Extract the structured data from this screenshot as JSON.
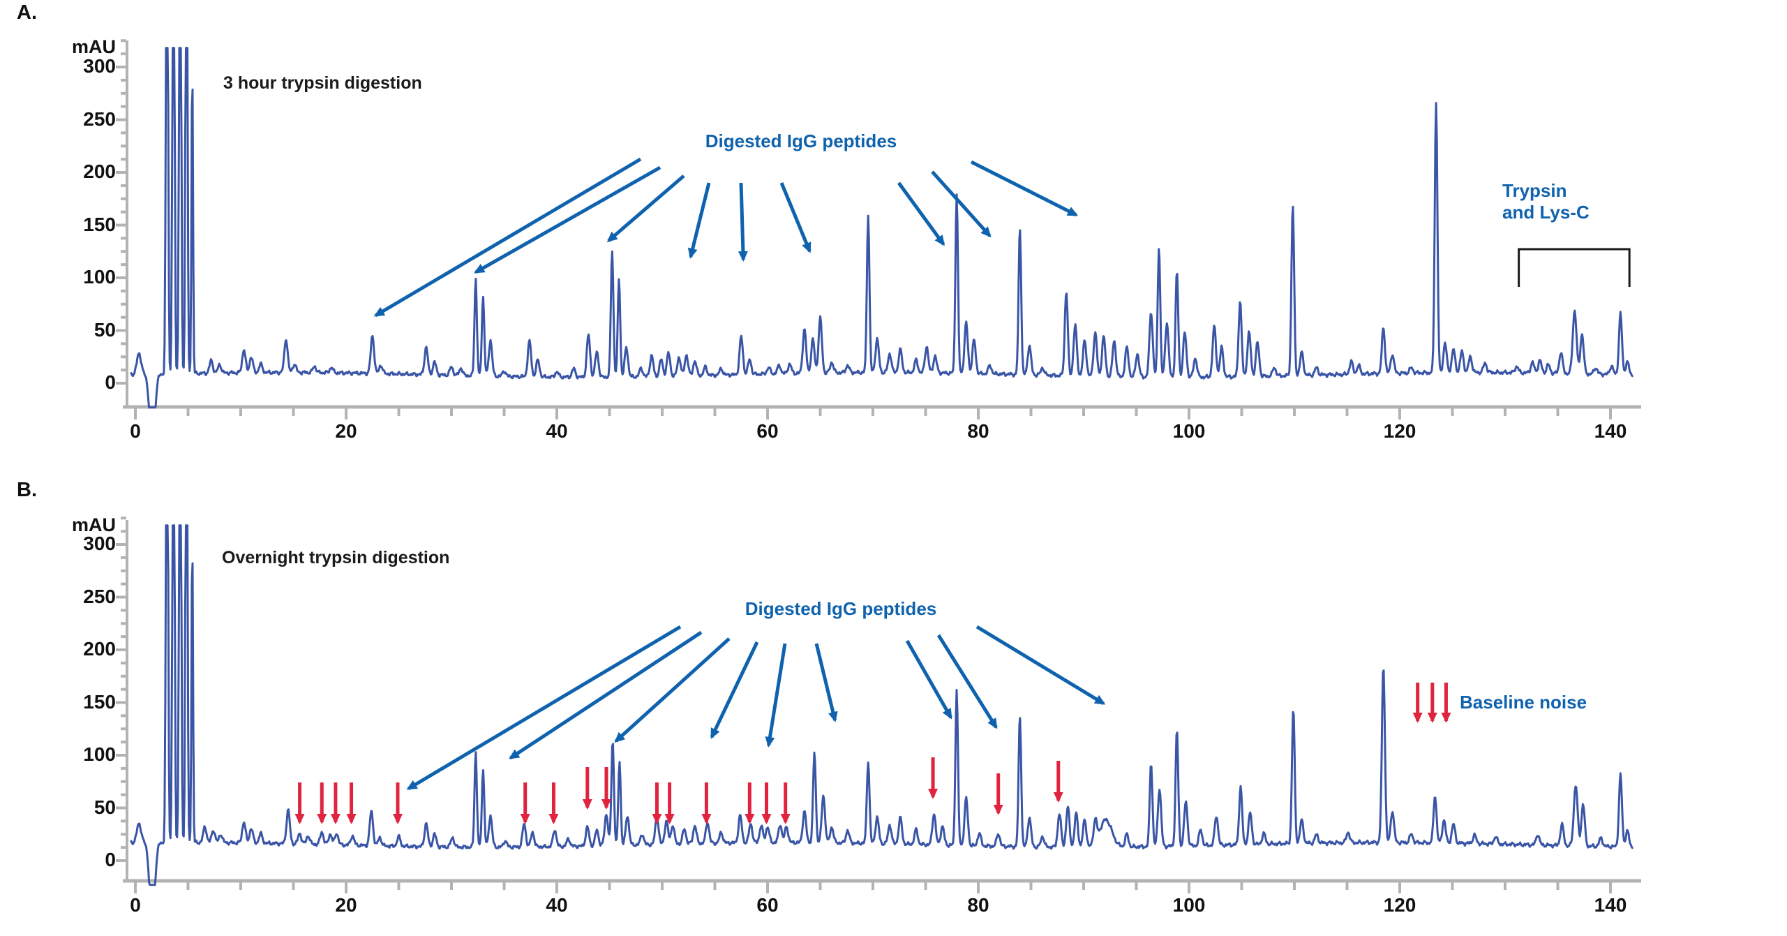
{
  "colors": {
    "trace_blue": "#3A55A6",
    "annotation_blue": "#0F62AE",
    "arrow_red": "#E02440",
    "axis_gray": "#B3B3B3",
    "text_black": "#111111",
    "bracket_black": "#1A1A1A"
  },
  "panels": [
    {
      "letter": "A.",
      "title": "3 hour trypsin digestion",
      "y_axis_unit": "mAU",
      "y_tick_labels": [
        300,
        250,
        200,
        150,
        100,
        50,
        0
      ],
      "x_tick_labels": [
        0,
        20,
        40,
        60,
        80,
        100,
        120,
        140
      ],
      "x_minor_step_min": 5,
      "annotations": {
        "digested_label": "Digested IgG peptides",
        "bracket_label": "Trypsin\nand Lys-C"
      },
      "digested_arrow_tips_min": [
        22.8,
        32.3,
        44.9,
        52.7,
        57.7,
        64.0,
        76.7,
        81.1,
        89.3
      ],
      "bracket_span_min": [
        131.3,
        141.8
      ]
    },
    {
      "letter": "B.",
      "title": "Overnight trypsin digestion",
      "y_axis_unit": "mAU",
      "y_tick_labels": [
        300,
        250,
        200,
        150,
        100,
        50,
        0
      ],
      "x_tick_labels": [
        0,
        20,
        40,
        60,
        80,
        100,
        120,
        140
      ],
      "x_minor_step_min": 5,
      "annotations": {
        "digested_label": "Digested IgG peptides",
        "baseline_label": "Baseline noise"
      },
      "digested_arrow_tips_min": [
        25.9,
        35.6,
        45.6,
        54.7,
        60.1,
        66.4,
        77.4,
        81.7,
        91.9
      ],
      "baseline_noise_arrow_min": [
        15.6,
        17.7,
        19.0,
        20.5,
        24.9,
        37.0,
        39.7,
        42.9,
        44.7,
        49.5,
        50.7,
        54.2,
        58.3,
        59.9,
        61.7,
        75.7,
        81.9,
        87.6
      ],
      "baseline_label_arrow_min": [
        121.7,
        123.1,
        124.4
      ]
    }
  ],
  "chart_data": [
    {
      "type": "line",
      "panel": "A",
      "title": "3 hour trypsin digestion",
      "xlabel": "",
      "ylabel": "mAU",
      "xlim": [
        0,
        142
      ],
      "ylim": [
        -25,
        325
      ],
      "grid": false,
      "baseline_mau": 8,
      "clip_mau": 318,
      "series_name": "UV trace 3 h trypsin digestion",
      "peaks_min_amp_width": [
        [
          0.35,
          20,
          0.3
        ],
        [
          1.6,
          -70,
          0.35
        ],
        [
          3.0,
          600,
          0.13
        ],
        [
          3.62,
          600,
          0.13
        ],
        [
          4.25,
          600,
          0.13
        ],
        [
          4.85,
          600,
          0.12
        ],
        [
          5.4,
          295,
          0.1
        ],
        [
          7.2,
          12
        ],
        [
          8.0,
          8
        ],
        [
          10.3,
          22
        ],
        [
          11.0,
          15
        ],
        [
          11.9,
          8
        ],
        [
          14.3,
          32
        ],
        [
          15.1,
          8
        ],
        [
          17.0,
          6
        ],
        [
          18.6,
          5
        ],
        [
          22.5,
          36
        ],
        [
          23.3,
          8
        ],
        [
          27.6,
          26
        ],
        [
          28.4,
          12
        ],
        [
          30.0,
          8
        ],
        [
          30.9,
          7
        ],
        [
          32.3,
          92,
          0.16
        ],
        [
          33.0,
          76,
          0.16
        ],
        [
          33.7,
          34
        ],
        [
          35.0,
          5
        ],
        [
          37.4,
          34
        ],
        [
          38.2,
          16
        ],
        [
          40.0,
          5
        ],
        [
          41.6,
          8
        ],
        [
          43.0,
          40
        ],
        [
          43.8,
          24
        ],
        [
          45.25,
          120,
          0.17
        ],
        [
          45.9,
          94,
          0.16
        ],
        [
          46.6,
          28
        ],
        [
          48.0,
          8
        ],
        [
          49.0,
          20
        ],
        [
          49.9,
          16
        ],
        [
          50.6,
          22
        ],
        [
          51.6,
          18
        ],
        [
          52.3,
          20
        ],
        [
          53.1,
          14
        ],
        [
          54.1,
          8
        ],
        [
          55.6,
          6
        ],
        [
          57.5,
          36
        ],
        [
          58.3,
          14
        ],
        [
          60.1,
          6
        ],
        [
          61.1,
          8
        ],
        [
          62.1,
          9
        ],
        [
          63.5,
          42
        ],
        [
          64.3,
          32
        ],
        [
          65.0,
          52
        ],
        [
          66.1,
          10
        ],
        [
          67.6,
          7
        ],
        [
          69.55,
          150,
          0.17
        ],
        [
          70.4,
          32
        ],
        [
          71.6,
          18
        ],
        [
          72.6,
          22
        ],
        [
          74.1,
          12
        ],
        [
          75.1,
          25
        ],
        [
          75.9,
          16
        ],
        [
          77.95,
          170,
          0.17
        ],
        [
          78.85,
          48
        ],
        [
          79.6,
          32
        ],
        [
          81.1,
          8
        ],
        [
          83.95,
          140,
          0.17
        ],
        [
          84.85,
          28
        ],
        [
          86.1,
          7
        ],
        [
          88.35,
          80,
          0.2
        ],
        [
          89.2,
          48
        ],
        [
          90.1,
          34
        ],
        [
          91.1,
          42
        ],
        [
          91.9,
          38
        ],
        [
          92.9,
          34
        ],
        [
          94.1,
          28
        ],
        [
          95.1,
          22
        ],
        [
          96.4,
          62
        ],
        [
          97.15,
          124,
          0.17
        ],
        [
          97.9,
          52
        ],
        [
          98.85,
          100,
          0.18
        ],
        [
          99.6,
          42
        ],
        [
          100.6,
          18
        ],
        [
          102.4,
          48
        ],
        [
          103.1,
          28
        ],
        [
          104.85,
          72,
          0.2
        ],
        [
          105.7,
          42
        ],
        [
          106.5,
          32
        ],
        [
          108.1,
          8
        ],
        [
          109.85,
          162,
          0.18
        ],
        [
          110.7,
          22
        ],
        [
          112.1,
          7
        ],
        [
          115.4,
          12
        ],
        [
          116.1,
          8
        ],
        [
          118.45,
          44,
          0.2
        ],
        [
          119.3,
          18
        ],
        [
          121.1,
          5
        ],
        [
          123.45,
          256,
          0.18
        ],
        [
          124.3,
          28
        ],
        [
          125.1,
          22
        ],
        [
          125.9,
          20
        ],
        [
          126.7,
          15
        ],
        [
          128.1,
          9
        ],
        [
          131.1,
          6
        ],
        [
          132.6,
          10
        ],
        [
          133.3,
          12
        ],
        [
          134.1,
          8
        ],
        [
          135.3,
          20
        ],
        [
          136.6,
          60,
          0.25
        ],
        [
          137.3,
          38
        ],
        [
          138.6,
          6
        ],
        [
          140.1,
          8
        ],
        [
          140.95,
          58,
          0.2
        ],
        [
          141.6,
          12
        ]
      ]
    },
    {
      "type": "line",
      "panel": "B",
      "title": "Overnight trypsin digestion",
      "xlabel": "",
      "ylabel": "mAU",
      "xlim": [
        0,
        142
      ],
      "ylim": [
        -25,
        325
      ],
      "grid": false,
      "baseline_mau": 15,
      "clip_mau": 318,
      "series_name": "UV trace overnight trypsin digestion",
      "peaks_min_amp_width": [
        [
          0.35,
          18,
          0.3
        ],
        [
          1.6,
          -75,
          0.35
        ],
        [
          3.0,
          600,
          0.13
        ],
        [
          3.62,
          600,
          0.13
        ],
        [
          4.25,
          600,
          0.13
        ],
        [
          4.85,
          600,
          0.12
        ],
        [
          5.4,
          290,
          0.1
        ],
        [
          6.6,
          15
        ],
        [
          7.4,
          12
        ],
        [
          8.1,
          8
        ],
        [
          10.3,
          20
        ],
        [
          11.0,
          14
        ],
        [
          11.9,
          9
        ],
        [
          14.5,
          32
        ],
        [
          15.6,
          10
        ],
        [
          16.4,
          8
        ],
        [
          17.7,
          12
        ],
        [
          18.5,
          10
        ],
        [
          19.1,
          11
        ],
        [
          20.6,
          9
        ],
        [
          22.4,
          33
        ],
        [
          23.2,
          8
        ],
        [
          25.0,
          9
        ],
        [
          27.6,
          22
        ],
        [
          28.4,
          12
        ],
        [
          30.1,
          9
        ],
        [
          32.3,
          90,
          0.16
        ],
        [
          33.0,
          74,
          0.16
        ],
        [
          33.7,
          30
        ],
        [
          35.1,
          6
        ],
        [
          36.9,
          22
        ],
        [
          37.7,
          14
        ],
        [
          39.8,
          16
        ],
        [
          41.1,
          7
        ],
        [
          42.9,
          18
        ],
        [
          43.8,
          15
        ],
        [
          44.7,
          30
        ],
        [
          45.3,
          100,
          0.17
        ],
        [
          45.95,
          80,
          0.16
        ],
        [
          46.7,
          28
        ],
        [
          48.1,
          10
        ],
        [
          49.5,
          26
        ],
        [
          50.4,
          22
        ],
        [
          51.0,
          18
        ],
        [
          52.1,
          14
        ],
        [
          53.1,
          17
        ],
        [
          54.3,
          20
        ],
        [
          55.6,
          10
        ],
        [
          57.4,
          26
        ],
        [
          58.4,
          18
        ],
        [
          59.4,
          16
        ],
        [
          60.0,
          15
        ],
        [
          61.2,
          17
        ],
        [
          61.8,
          15
        ],
        [
          63.5,
          30
        ],
        [
          64.45,
          85,
          0.18
        ],
        [
          65.3,
          45
        ],
        [
          66.1,
          15
        ],
        [
          67.6,
          12
        ],
        [
          69.55,
          78,
          0.18
        ],
        [
          70.4,
          25
        ],
        [
          71.6,
          18
        ],
        [
          72.6,
          25
        ],
        [
          74.1,
          14
        ],
        [
          75.8,
          30
        ],
        [
          76.6,
          18
        ],
        [
          77.95,
          148,
          0.17
        ],
        [
          78.85,
          45
        ],
        [
          80.1,
          12
        ],
        [
          81.9,
          12
        ],
        [
          83.95,
          125,
          0.17
        ],
        [
          84.85,
          28
        ],
        [
          86.1,
          10
        ],
        [
          87.7,
          32
        ],
        [
          88.5,
          38
        ],
        [
          89.3,
          32
        ],
        [
          90.1,
          26
        ],
        [
          91.1,
          22
        ],
        [
          92.1,
          26,
          0.8
        ],
        [
          94.1,
          12
        ],
        [
          96.4,
          80,
          0.18
        ],
        [
          97.2,
          55
        ],
        [
          98.85,
          110,
          0.18
        ],
        [
          99.7,
          42
        ],
        [
          101.1,
          15
        ],
        [
          102.6,
          28
        ],
        [
          104.9,
          55,
          0.2
        ],
        [
          105.8,
          30
        ],
        [
          107.1,
          10
        ],
        [
          109.9,
          128,
          0.18
        ],
        [
          110.7,
          22
        ],
        [
          112.1,
          8
        ],
        [
          115.1,
          10
        ],
        [
          118.45,
          168,
          0.2
        ],
        [
          119.3,
          30
        ],
        [
          121.1,
          8
        ],
        [
          123.35,
          45,
          0.2
        ],
        [
          124.2,
          22
        ],
        [
          125.1,
          18
        ],
        [
          127.1,
          8
        ],
        [
          129.1,
          7
        ],
        [
          133.1,
          10
        ],
        [
          135.4,
          20
        ],
        [
          136.7,
          58,
          0.25
        ],
        [
          137.4,
          40
        ],
        [
          139.1,
          8
        ],
        [
          140.95,
          68,
          0.2
        ],
        [
          141.6,
          15
        ]
      ]
    }
  ]
}
